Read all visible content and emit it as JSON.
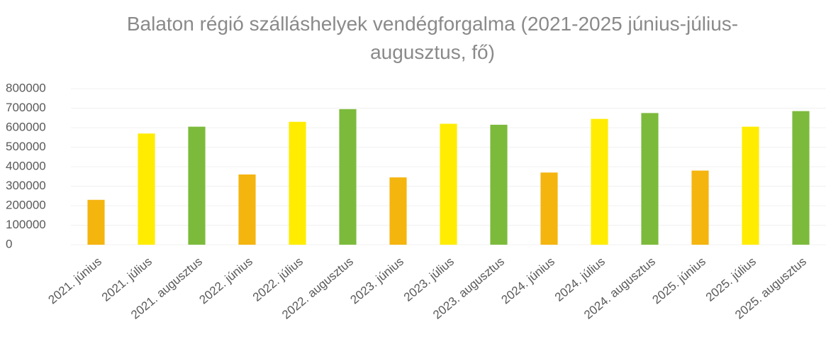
{
  "chart_data": {
    "type": "bar",
    "title": "Balaton régió szálláshelyek vendégforgalma (2021-2025 június-július-augusztus, fő)",
    "categories": [
      "2021. június",
      "2021. július",
      "2021. augusztus",
      "2022. június",
      "2022. július",
      "2022. augusztus",
      "2023. június",
      "2023. július",
      "2023. augusztus",
      "2024. június",
      "2024. július",
      "2024. augusztus",
      "2025. június",
      "2025. július",
      "2025. augusztus"
    ],
    "values": [
      230000,
      570000,
      605000,
      360000,
      630000,
      695000,
      345000,
      620000,
      615000,
      370000,
      645000,
      675000,
      380000,
      605000,
      685000
    ],
    "colors": [
      "#f5b50f",
      "#ffec00",
      "#7cba3c",
      "#f5b50f",
      "#ffec00",
      "#7cba3c",
      "#f5b50f",
      "#ffec00",
      "#7cba3c",
      "#f5b50f",
      "#ffec00",
      "#7cba3c",
      "#f5b50f",
      "#ffec00",
      "#7cba3c"
    ],
    "ylim": [
      0,
      800000
    ],
    "yticks": [
      0,
      100000,
      200000,
      300000,
      400000,
      500000,
      600000,
      700000,
      800000
    ],
    "grid": true
  }
}
